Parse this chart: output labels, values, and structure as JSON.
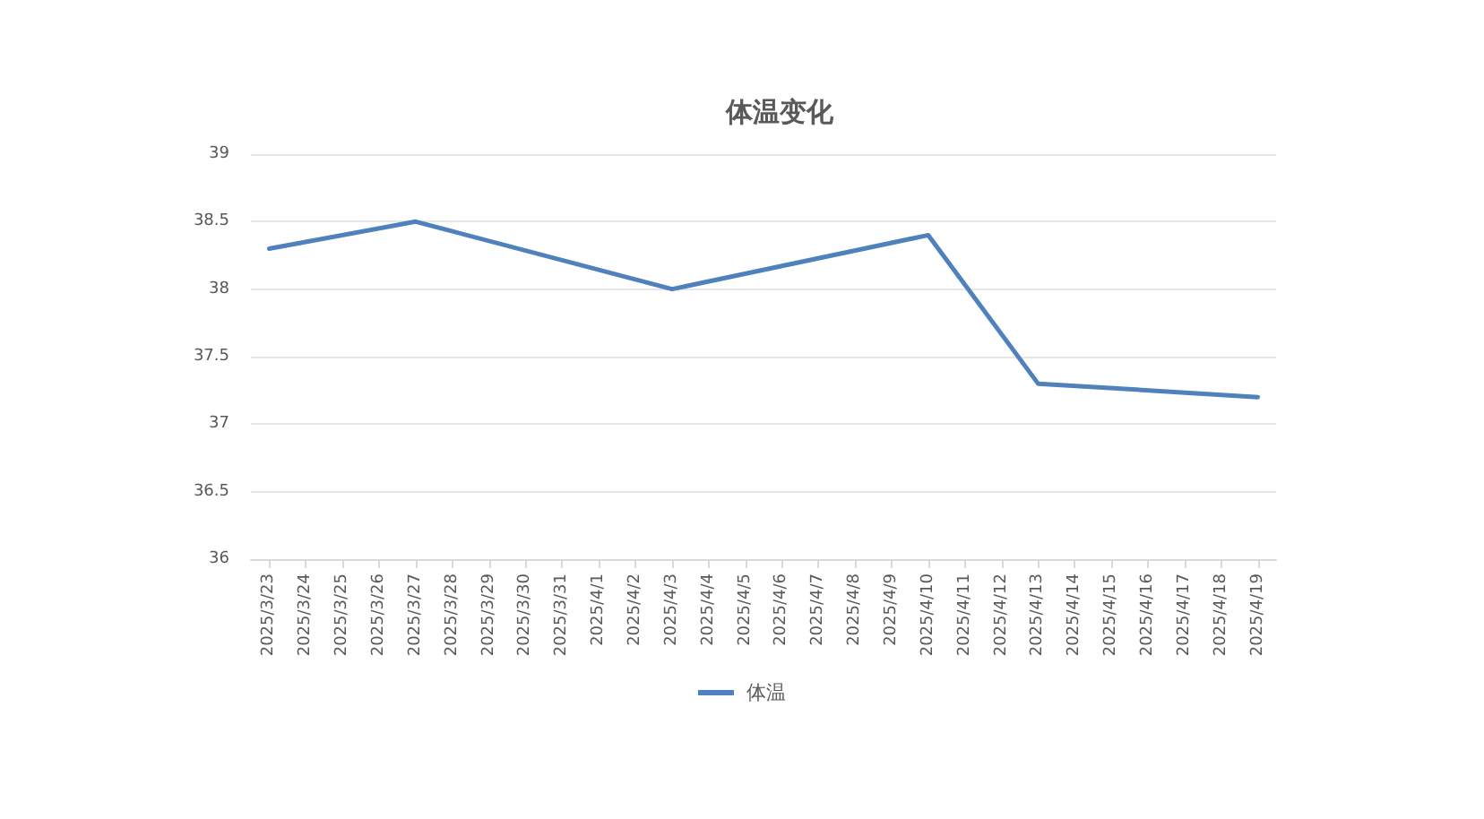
{
  "chart_data": {
    "type": "line",
    "title": "体温变化",
    "series": [
      {
        "name": "体温",
        "color": "#4f81bd",
        "x": [
          "2025-03-23",
          "2025-03-27",
          "2025-04-03",
          "2025-04-10",
          "2025-04-13",
          "2025-04-19"
        ],
        "values": [
          38.3,
          38.5,
          38.0,
          38.4,
          37.3,
          37.2
        ]
      }
    ],
    "xlim": [
      "2025-03-22T12:00",
      "2025-04-19T12:00"
    ],
    "xticks": [
      {
        "value": "2025-03-23",
        "label": "2025/3/23"
      },
      {
        "value": "2025-03-24",
        "label": "2025/3/24"
      },
      {
        "value": "2025-03-25",
        "label": "2025/3/25"
      },
      {
        "value": "2025-03-26",
        "label": "2025/3/26"
      },
      {
        "value": "2025-03-27",
        "label": "2025/3/27"
      },
      {
        "value": "2025-03-28",
        "label": "2025/3/28"
      },
      {
        "value": "2025-03-29",
        "label": "2025/3/29"
      },
      {
        "value": "2025-03-30",
        "label": "2025/3/30"
      },
      {
        "value": "2025-03-31",
        "label": "2025/3/31"
      },
      {
        "value": "2025-04-01",
        "label": "2025/4/1"
      },
      {
        "value": "2025-04-02",
        "label": "2025/4/2"
      },
      {
        "value": "2025-04-03",
        "label": "2025/4/3"
      },
      {
        "value": "2025-04-04",
        "label": "2025/4/4"
      },
      {
        "value": "2025-04-05",
        "label": "2025/4/5"
      },
      {
        "value": "2025-04-06",
        "label": "2025/4/6"
      },
      {
        "value": "2025-04-07",
        "label": "2025/4/7"
      },
      {
        "value": "2025-04-08",
        "label": "2025/4/8"
      },
      {
        "value": "2025-04-09",
        "label": "2025/4/9"
      },
      {
        "value": "2025-04-10",
        "label": "2025/4/10"
      },
      {
        "value": "2025-04-11",
        "label": "2025/4/11"
      },
      {
        "value": "2025-04-12",
        "label": "2025/4/12"
      },
      {
        "value": "2025-04-13",
        "label": "2025/4/13"
      },
      {
        "value": "2025-04-14",
        "label": "2025/4/14"
      },
      {
        "value": "2025-04-15",
        "label": "2025/4/15"
      },
      {
        "value": "2025-04-16",
        "label": "2025/4/16"
      },
      {
        "value": "2025-04-17",
        "label": "2025/4/17"
      },
      {
        "value": "2025-04-18",
        "label": "2025/4/18"
      },
      {
        "value": "2025-04-19",
        "label": "2025/4/19"
      }
    ],
    "ylim": [
      36,
      39
    ],
    "yticks": [
      36,
      36.5,
      37,
      37.5,
      38,
      38.5,
      39
    ],
    "grid": "y",
    "legend": "bottom",
    "marker": "none",
    "line_style": "solid"
  }
}
